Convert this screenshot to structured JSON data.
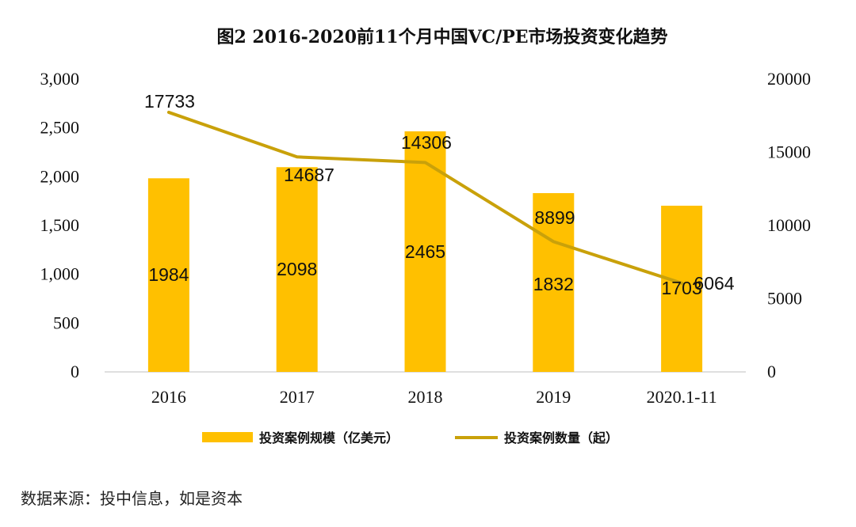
{
  "chart_data": {
    "type": "bar",
    "title": "图2   2016-2020前11个月中国VC/PE市场投资变化趋势",
    "categories": [
      "2016",
      "2017",
      "2018",
      "2019",
      "2020.1-11"
    ],
    "series": [
      {
        "name": "投资案例规模（亿美元）",
        "type": "bar",
        "axis": "left",
        "color": "#FFC000",
        "values": [
          1984,
          2098,
          2465,
          1832,
          1703
        ]
      },
      {
        "name": "投资案例数量（起）",
        "type": "line",
        "axis": "right",
        "color": "#C9A10A",
        "values": [
          17733,
          14687,
          14306,
          8899,
          6064
        ]
      }
    ],
    "ylim_left": [
      0,
      3000
    ],
    "ylim_right": [
      0,
      20000
    ],
    "yticks_left": [
      "0",
      "500",
      "1,000",
      "1,500",
      "2,000",
      "2,500",
      "3,000"
    ],
    "yticks_right": [
      "0",
      "5000",
      "10000",
      "15000",
      "20000"
    ],
    "grid": false,
    "legend_position": "bottom"
  },
  "source_text": "数据来源：投中信息，如是资本"
}
